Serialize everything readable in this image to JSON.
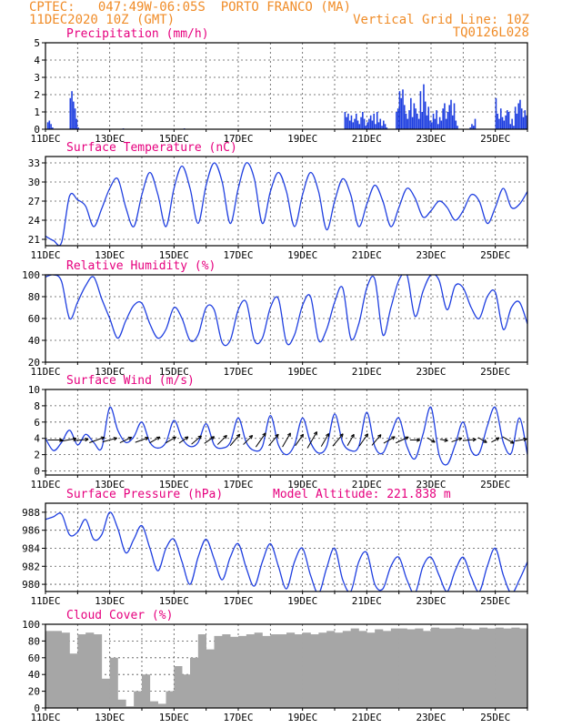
{
  "header": {
    "line1": "CPTEC:   047:49W-06:05S  PORTO FRANCO (MA)",
    "line2": "11DEC2020 10Z (GMT)",
    "grid_note": "Vertical Grid Line: 10Z",
    "code": "TQ0126L028"
  },
  "colors": {
    "header": "#f08c28",
    "title": "#e6007e",
    "series": "#1f3fe0",
    "cloud": "#a6a6a6",
    "arrows": "#000000"
  },
  "chart_data": [
    {
      "type": "bar",
      "title": "Precipitation (mm/h)",
      "xlabel": "",
      "ylabel": "",
      "xlim": [
        0,
        15
      ],
      "ylim": [
        0,
        5
      ],
      "yticks": [
        0,
        1,
        2,
        3,
        4,
        5
      ],
      "x_ticks": [
        "11DEC",
        "13DEC",
        "15DEC",
        "17DEC",
        "19DEC",
        "21DEC",
        "23DEC",
        "25DEC"
      ],
      "x_tick_days": [
        0,
        2,
        4,
        6,
        8,
        10,
        12,
        14
      ],
      "grid": true,
      "color": "#1f3fe0",
      "x": [
        0.05,
        0.1,
        0.15,
        0.2,
        0.75,
        0.8,
        0.85,
        0.9,
        0.95,
        1.0,
        2.4,
        4.3,
        9.3,
        9.35,
        9.4,
        9.45,
        9.5,
        9.55,
        9.6,
        9.65,
        9.7,
        9.75,
        9.8,
        9.85,
        9.9,
        9.95,
        10.0,
        10.05,
        10.1,
        10.15,
        10.2,
        10.25,
        10.3,
        10.35,
        10.4,
        10.45,
        10.5,
        10.55,
        10.6,
        10.9,
        10.95,
        11.0,
        11.05,
        11.1,
        11.15,
        11.2,
        11.25,
        11.3,
        11.35,
        11.4,
        11.45,
        11.5,
        11.55,
        11.6,
        11.65,
        11.7,
        11.75,
        11.8,
        11.85,
        11.9,
        11.95,
        12.0,
        12.05,
        12.1,
        12.15,
        12.2,
        12.25,
        12.3,
        12.35,
        12.4,
        12.45,
        12.5,
        12.55,
        12.6,
        12.65,
        12.7,
        12.75,
        12.8,
        13.2,
        13.25,
        13.3,
        13.35,
        14.0,
        14.05,
        14.1,
        14.15,
        14.2,
        14.25,
        14.3,
        14.35,
        14.4,
        14.45,
        14.5,
        14.55,
        14.6,
        14.65,
        14.7,
        14.75,
        14.8,
        14.85,
        14.9,
        14.95
      ],
      "values": [
        0.4,
        0.5,
        0.3,
        0.1,
        1.8,
        2.2,
        1.6,
        1.2,
        0.6,
        0.1,
        0.05,
        0.05,
        1.0,
        0.7,
        0.9,
        0.5,
        0.8,
        0.4,
        0.6,
        0.9,
        0.5,
        0.3,
        0.7,
        1.0,
        0.6,
        0.2,
        0.4,
        0.6,
        0.8,
        0.5,
        0.9,
        0.3,
        1.0,
        0.4,
        0.6,
        0.2,
        0.5,
        0.3,
        0.1,
        1.0,
        1.2,
        2.2,
        1.8,
        2.3,
        1.4,
        0.9,
        0.6,
        1.1,
        1.8,
        0.7,
        1.5,
        1.2,
        0.9,
        0.6,
        2.2,
        1.0,
        2.6,
        1.6,
        0.8,
        1.3,
        0.5,
        0.4,
        0.9,
        0.6,
        1.1,
        0.3,
        0.7,
        0.5,
        1.2,
        1.5,
        0.6,
        1.0,
        1.4,
        1.7,
        0.8,
        1.5,
        0.5,
        0.2,
        0.1,
        0.3,
        0.2,
        0.6,
        1.8,
        0.9,
        0.6,
        1.2,
        0.7,
        0.5,
        0.8,
        1.1,
        1.0,
        0.3,
        0.6,
        0.2,
        1.3,
        0.9,
        1.5,
        1.7,
        1.2,
        0.7,
        1.1,
        0.8
      ]
    },
    {
      "type": "line",
      "title": "Surface Temperature (nC)",
      "xlabel": "",
      "ylabel": "",
      "xlim": [
        0,
        15
      ],
      "ylim": [
        20,
        34
      ],
      "yticks": [
        21,
        24,
        27,
        30,
        33
      ],
      "x_ticks": [
        "11DEC",
        "13DEC",
        "15DEC",
        "17DEC",
        "19DEC",
        "21DEC",
        "23DEC",
        "25DEC"
      ],
      "x_tick_days": [
        0,
        2,
        4,
        6,
        8,
        10,
        12,
        14
      ],
      "grid": true,
      "color": "#1f3fe0",
      "x": [
        0,
        0.25,
        0.5,
        0.75,
        1.0,
        1.25,
        1.5,
        1.75,
        2.0,
        2.25,
        2.5,
        2.75,
        3.0,
        3.25,
        3.5,
        3.75,
        4.0,
        4.25,
        4.5,
        4.75,
        5.0,
        5.25,
        5.5,
        5.75,
        6.0,
        6.25,
        6.5,
        6.75,
        7.0,
        7.25,
        7.5,
        7.75,
        8.0,
        8.25,
        8.5,
        8.75,
        9.0,
        9.25,
        9.5,
        9.75,
        10.0,
        10.25,
        10.5,
        10.75,
        11.0,
        11.25,
        11.5,
        11.75,
        12.0,
        12.25,
        12.5,
        12.75,
        13.0,
        13.25,
        13.5,
        13.75,
        14.0,
        14.25,
        14.5,
        14.75,
        15.0
      ],
      "values": [
        21.5,
        20.8,
        20.5,
        27.8,
        27.2,
        26.2,
        23.0,
        25.8,
        29.0,
        30.5,
        26.0,
        23.0,
        28.0,
        31.5,
        28.0,
        23.0,
        29.0,
        32.5,
        29.0,
        23.5,
        29.5,
        33.0,
        30.0,
        23.5,
        29.0,
        33.0,
        30.5,
        23.5,
        28.5,
        31.5,
        28.5,
        23.0,
        28.0,
        31.5,
        28.5,
        22.5,
        27.0,
        30.5,
        28.0,
        23.0,
        26.5,
        29.5,
        27.0,
        23.0,
        26.0,
        29.0,
        27.5,
        24.5,
        25.5,
        27.0,
        26.0,
        24.0,
        25.5,
        28.0,
        27.0,
        23.5,
        26.0,
        29.0,
        26.0,
        26.5,
        28.5
      ]
    },
    {
      "type": "line",
      "title": "Relative Humidity (%)",
      "xlabel": "",
      "ylabel": "",
      "xlim": [
        0,
        15
      ],
      "ylim": [
        20,
        100
      ],
      "yticks": [
        20,
        40,
        60,
        80,
        100
      ],
      "x_ticks": [
        "11DEC",
        "13DEC",
        "15DEC",
        "17DEC",
        "19DEC",
        "21DEC",
        "23DEC",
        "25DEC"
      ],
      "x_tick_days": [
        0,
        2,
        4,
        6,
        8,
        10,
        12,
        14
      ],
      "grid": true,
      "color": "#1f3fe0",
      "x": [
        0,
        0.25,
        0.5,
        0.75,
        1.0,
        1.25,
        1.5,
        1.75,
        2.0,
        2.25,
        2.5,
        2.75,
        3.0,
        3.25,
        3.5,
        3.75,
        4.0,
        4.25,
        4.5,
        4.75,
        5.0,
        5.25,
        5.5,
        5.75,
        6.0,
        6.25,
        6.5,
        6.75,
        7.0,
        7.25,
        7.5,
        7.75,
        8.0,
        8.25,
        8.5,
        8.75,
        9.0,
        9.25,
        9.5,
        9.75,
        10.0,
        10.25,
        10.5,
        10.75,
        11.0,
        11.25,
        11.5,
        11.75,
        12.0,
        12.25,
        12.5,
        12.75,
        13.0,
        13.25,
        13.5,
        13.75,
        14.0,
        14.25,
        14.5,
        14.75,
        15.0
      ],
      "values": [
        98,
        100,
        94,
        60,
        75,
        90,
        98,
        78,
        60,
        42,
        58,
        72,
        74,
        55,
        42,
        50,
        70,
        60,
        40,
        45,
        70,
        68,
        38,
        40,
        68,
        75,
        40,
        42,
        70,
        78,
        38,
        45,
        72,
        80,
        40,
        50,
        75,
        88,
        42,
        55,
        88,
        96,
        45,
        70,
        95,
        100,
        62,
        85,
        100,
        95,
        68,
        90,
        88,
        70,
        60,
        80,
        84,
        50,
        70,
        75,
        55
      ]
    },
    {
      "type": "line",
      "title": "Surface Wind (m/s)",
      "xlabel": "",
      "ylabel": "",
      "xlim": [
        0,
        15
      ],
      "ylim": [
        -0.5,
        10
      ],
      "yticks": [
        0,
        2,
        4,
        6,
        8,
        10
      ],
      "x_ticks": [
        "11DEC",
        "13DEC",
        "15DEC",
        "17DEC",
        "19DEC",
        "21DEC",
        "23DEC",
        "25DEC"
      ],
      "x_tick_days": [
        0,
        2,
        4,
        6,
        8,
        10,
        12,
        14
      ],
      "grid": true,
      "color": "#1f3fe0",
      "x": [
        0,
        0.25,
        0.5,
        0.75,
        1.0,
        1.25,
        1.5,
        1.75,
        2.0,
        2.25,
        2.5,
        2.75,
        3.0,
        3.25,
        3.5,
        3.75,
        4.0,
        4.25,
        4.5,
        4.75,
        5.0,
        5.25,
        5.5,
        5.75,
        6.0,
        6.25,
        6.5,
        6.75,
        7.0,
        7.25,
        7.5,
        7.75,
        8.0,
        8.25,
        8.5,
        8.75,
        9.0,
        9.25,
        9.5,
        9.75,
        10.0,
        10.25,
        10.5,
        10.75,
        11.0,
        11.25,
        11.5,
        11.75,
        12.0,
        12.25,
        12.5,
        12.75,
        13.0,
        13.25,
        13.5,
        13.75,
        14.0,
        14.25,
        14.5,
        14.75,
        15.0
      ],
      "values": [
        4.0,
        2.5,
        3.5,
        5.0,
        3.2,
        4.5,
        3.5,
        2.8,
        7.8,
        5.0,
        3.5,
        4.2,
        6.0,
        3.5,
        2.8,
        3.5,
        6.2,
        4.0,
        3.0,
        3.5,
        5.8,
        3.2,
        2.8,
        3.5,
        6.5,
        3.5,
        2.5,
        3.0,
        6.8,
        3.2,
        2.0,
        3.2,
        6.5,
        3.5,
        2.2,
        3.0,
        7.0,
        3.5,
        2.5,
        3.0,
        7.2,
        3.0,
        2.2,
        4.5,
        6.5,
        3.0,
        1.5,
        4.5,
        7.8,
        2.0,
        0.8,
        3.2,
        6.0,
        2.5,
        2.2,
        5.5,
        7.8,
        3.5,
        2.2,
        6.5,
        2.0
      ],
      "arrows": {
        "x": [
          0.3,
          0.7,
          1.1,
          1.6,
          2.0,
          2.5,
          3.0,
          3.4,
          3.9,
          4.3,
          4.7,
          5.1,
          5.5,
          5.9,
          6.3,
          6.7,
          7.1,
          7.5,
          7.9,
          8.3,
          8.7,
          9.1,
          9.5,
          9.9,
          10.3,
          10.7,
          11.1,
          11.5,
          12.0,
          12.4,
          12.8,
          13.2,
          13.6,
          14.0,
          14.4,
          14.8
        ],
        "speed": [
          3.0,
          3.4,
          3.0,
          3.2,
          3.0,
          2.6,
          2.8,
          2.4,
          2.4,
          2.2,
          2.6,
          2.4,
          2.6,
          3.0,
          2.6,
          3.4,
          3.0,
          3.2,
          2.8,
          3.8,
          3.0,
          3.2,
          2.6,
          3.0,
          2.8,
          2.6,
          2.8,
          2.0,
          1.8,
          1.6,
          2.2,
          2.6,
          2.0,
          1.8,
          2.6,
          2.4
        ],
        "direction_deg": [
          90,
          100,
          95,
          110,
          105,
          115,
          110,
          120,
          120,
          125,
          130,
          125,
          135,
          140,
          135,
          145,
          140,
          150,
          145,
          150,
          150,
          140,
          150,
          145,
          140,
          120,
          115,
          90,
          60,
          80,
          110,
          95,
          60,
          120,
          60,
          100
        ]
      }
    },
    {
      "type": "line",
      "title": "Surface Pressure (hPa)",
      "annotation": "Model Altitude: 221.838  m",
      "xlabel": "",
      "ylabel": "",
      "xlim": [
        0,
        15
      ],
      "ylim": [
        979.2,
        989
      ],
      "yticks": [
        980,
        982,
        984,
        986,
        988
      ],
      "x_ticks": [
        "11DEC",
        "13DEC",
        "15DEC",
        "17DEC",
        "19DEC",
        "21DEC",
        "23DEC",
        "25DEC"
      ],
      "x_tick_days": [
        0,
        2,
        4,
        6,
        8,
        10,
        12,
        14
      ],
      "grid": true,
      "color": "#1f3fe0",
      "x": [
        0,
        0.25,
        0.5,
        0.75,
        1.0,
        1.25,
        1.5,
        1.75,
        2.0,
        2.25,
        2.5,
        2.75,
        3.0,
        3.25,
        3.5,
        3.75,
        4.0,
        4.25,
        4.5,
        4.75,
        5.0,
        5.25,
        5.5,
        5.75,
        6.0,
        6.25,
        6.5,
        6.75,
        7.0,
        7.25,
        7.5,
        7.75,
        8.0,
        8.25,
        8.5,
        8.75,
        9.0,
        9.25,
        9.5,
        9.75,
        10.0,
        10.25,
        10.5,
        10.75,
        11.0,
        11.25,
        11.5,
        11.75,
        12.0,
        12.25,
        12.5,
        12.75,
        13.0,
        13.25,
        13.5,
        13.75,
        14.0,
        14.25,
        14.5,
        14.75,
        15.0
      ],
      "values": [
        987.2,
        987.5,
        987.8,
        985.5,
        985.8,
        987.2,
        985.0,
        985.5,
        988.0,
        986.2,
        983.5,
        985.0,
        986.5,
        984.0,
        981.5,
        984.0,
        985.0,
        982.5,
        980.0,
        983.0,
        985.0,
        982.8,
        980.5,
        983.0,
        984.5,
        981.8,
        979.8,
        982.5,
        984.5,
        982.0,
        979.5,
        982.5,
        984.0,
        981.0,
        979.0,
        981.8,
        984.0,
        980.5,
        979.2,
        982.5,
        983.5,
        980.0,
        979.5,
        982.0,
        983.0,
        980.5,
        979.0,
        982.0,
        983.0,
        981.0,
        979.2,
        981.5,
        983.0,
        980.8,
        979.2,
        982.0,
        984.0,
        981.0,
        979.0,
        980.5,
        982.5
      ]
    },
    {
      "type": "bar",
      "title": "Cloud Cover (%)",
      "xlabel": "",
      "ylabel": "",
      "xlim": [
        0,
        15
      ],
      "ylim": [
        0,
        100
      ],
      "yticks": [
        0,
        20,
        40,
        60,
        80,
        100
      ],
      "x_ticks": [
        "11DEC",
        "13DEC",
        "15DEC",
        "17DEC",
        "19DEC",
        "21DEC",
        "23DEC",
        "25DEC"
      ],
      "x_tick_days": [
        0,
        2,
        4,
        6,
        8,
        10,
        12,
        14
      ],
      "grid": true,
      "color": "#a6a6a6",
      "x": [
        0,
        0.25,
        0.5,
        0.75,
        1.0,
        1.25,
        1.5,
        1.75,
        2.0,
        2.25,
        2.5,
        2.75,
        3.0,
        3.25,
        3.5,
        3.75,
        4.0,
        4.25,
        4.5,
        4.75,
        5.0,
        5.25,
        5.5,
        5.75,
        6.0,
        6.25,
        6.5,
        6.75,
        7.0,
        7.25,
        7.5,
        7.75,
        8.0,
        8.25,
        8.5,
        8.75,
        9.0,
        9.25,
        9.5,
        9.75,
        10.0,
        10.25,
        10.5,
        10.75,
        11.0,
        11.25,
        11.5,
        11.75,
        12.0,
        12.25,
        12.5,
        12.75,
        13.0,
        13.25,
        13.5,
        13.75,
        14.0,
        14.25,
        14.5,
        14.75,
        15.0
      ],
      "values": [
        92,
        92,
        90,
        65,
        88,
        90,
        88,
        35,
        60,
        10,
        2,
        20,
        40,
        8,
        5,
        20,
        50,
        40,
        60,
        88,
        70,
        86,
        88,
        85,
        86,
        88,
        90,
        86,
        88,
        88,
        90,
        88,
        90,
        88,
        90,
        92,
        90,
        92,
        95,
        92,
        90,
        94,
        92,
        95,
        95,
        94,
        95,
        92,
        96,
        95,
        95,
        96,
        95,
        94,
        96,
        95,
        96,
        95,
        96,
        95,
        96
      ]
    }
  ]
}
